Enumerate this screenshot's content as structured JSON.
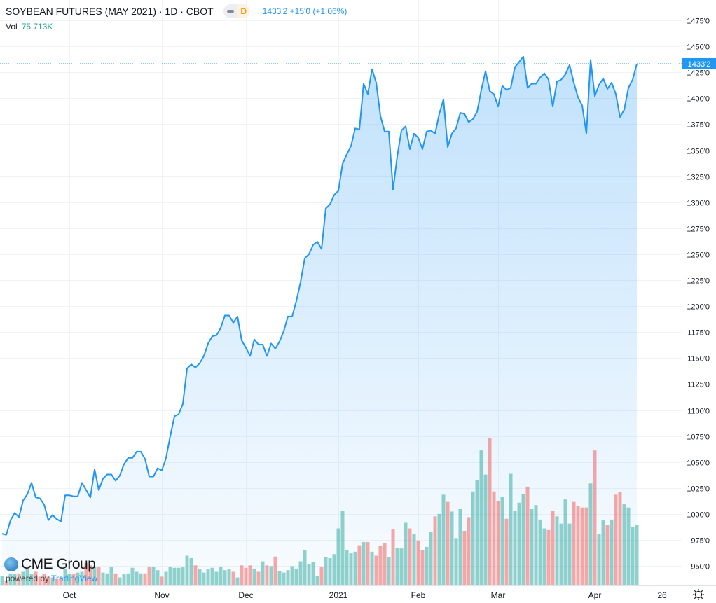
{
  "header": {
    "title": "SOYBEAN FUTURES (MAY 2021) · 1D · CBOT",
    "interval_badge": "D",
    "last_price": "1433'2",
    "change": "+15'0",
    "change_pct": "(+1.06%)",
    "volume_label": "Vol",
    "volume_value": "75.713K"
  },
  "branding": {
    "logo": "CME Group",
    "powered_by": "powered by",
    "provider": "TradingView"
  },
  "price_label": "1433'2",
  "colors": {
    "line": "#2196f3",
    "up": "#26a69a",
    "down": "#ef5350",
    "grid": "#f0f3fa"
  },
  "chart_data": {
    "type": "area",
    "title": "SOYBEAN FUTURES (MAY 2021) · 1D · CBOT",
    "ylim": [
      937.5,
      1487.5
    ],
    "y_ticks": [
      950,
      975,
      1000,
      1025,
      1050,
      1075,
      1100,
      1125,
      1150,
      1175,
      1200,
      1225,
      1250,
      1275,
      1300,
      1325,
      1350,
      1375,
      1400,
      1425,
      1450,
      1475
    ],
    "y_tick_labels": [
      "950'0",
      "975'0",
      "1000'0",
      "1025'0",
      "1050'0",
      "1075'0",
      "1100'0",
      "1125'0",
      "1150'0",
      "1175'0",
      "1200'0",
      "1225'0",
      "1250'0",
      "1275'0",
      "1300'0",
      "1325'0",
      "1350'0",
      "1375'0",
      "1400'0",
      "1425'0",
      "1450'0",
      "1475'0"
    ],
    "x_ticks": [
      {
        "label": "Oct",
        "index": 16
      },
      {
        "label": "Nov",
        "index": 38
      },
      {
        "label": "Dec",
        "index": 58
      },
      {
        "label": "2021",
        "index": 80
      },
      {
        "label": "Feb",
        "index": 99
      },
      {
        "label": "Mar",
        "index": 118
      },
      {
        "label": "Apr",
        "index": 141
      },
      {
        "label": "26",
        "index": 157
      }
    ],
    "current_price": 1433.25,
    "price": [
      981,
      980,
      994,
      1001,
      997,
      1013,
      1019,
      1030,
      1016,
      1015,
      1009,
      994,
      999,
      995,
      993,
      1018,
      1018,
      1017,
      1017,
      1030,
      1023,
      1016,
      1043,
      1023,
      1034,
      1038,
      1038,
      1032,
      1037,
      1048,
      1054,
      1054,
      1060,
      1060,
      1053,
      1036,
      1036,
      1044,
      1042,
      1054,
      1075,
      1094,
      1096,
      1106,
      1140,
      1144,
      1141,
      1145,
      1152,
      1164,
      1171,
      1172,
      1179,
      1191,
      1191,
      1184,
      1190,
      1167,
      1160,
      1152,
      1168,
      1163,
      1163,
      1152,
      1164,
      1159,
      1166,
      1176,
      1190,
      1190,
      1205,
      1223,
      1246,
      1250,
      1259,
      1262,
      1255,
      1294,
      1298,
      1307,
      1311,
      1337,
      1346,
      1354,
      1371,
      1370,
      1414,
      1404,
      1428,
      1415,
      1383,
      1368,
      1368,
      1312,
      1344,
      1369,
      1373,
      1351,
      1366,
      1362,
      1351,
      1368,
      1369,
      1366,
      1385,
      1399,
      1353,
      1366,
      1371,
      1386,
      1385,
      1377,
      1380,
      1387,
      1408,
      1426,
      1407,
      1404,
      1392,
      1412,
      1408,
      1410,
      1430,
      1435,
      1440,
      1410,
      1414,
      1414,
      1420,
      1424,
      1418,
      1392,
      1416,
      1418,
      1423,
      1432,
      1415,
      1401,
      1393,
      1366,
      1437,
      1402,
      1413,
      1419,
      1409,
      1415,
      1404,
      1382,
      1389,
      1410,
      1418,
      1433.25
    ],
    "volume_k": [
      12,
      6,
      15,
      14,
      15,
      17,
      20,
      14,
      17,
      11,
      14,
      11,
      10,
      8,
      10,
      21,
      14,
      14,
      16,
      17,
      28,
      25,
      23,
      23,
      16,
      15,
      23,
      15,
      10,
      14,
      15,
      22,
      17,
      15,
      15,
      23,
      23,
      19,
      11,
      17,
      23,
      22,
      22,
      23,
      37,
      34,
      25,
      20,
      16,
      20,
      22,
      17,
      23,
      19,
      20,
      17,
      10,
      25,
      22,
      25,
      21,
      17,
      30,
      25,
      24,
      36,
      18,
      16,
      19,
      24,
      21,
      30,
      44,
      27,
      29,
      12,
      23,
      35,
      34,
      39,
      71,
      93,
      44,
      40,
      42,
      50,
      54,
      54,
      42,
      37,
      49,
      53,
      35,
      70,
      47,
      46,
      78,
      71,
      64,
      56,
      44,
      48,
      67,
      86,
      89,
      113,
      104,
      92,
      59,
      95,
      68,
      85,
      117,
      131,
      168,
      138,
      183,
      117,
      105,
      110,
      83,
      139,
      93,
      103,
      114,
      123,
      95,
      100,
      82,
      71,
      69,
      93,
      86,
      77,
      107,
      77,
      104,
      99,
      97,
      97,
      127,
      168,
      64,
      81,
      75,
      82,
      113,
      116,
      101,
      97,
      73,
      75.713
    ]
  }
}
